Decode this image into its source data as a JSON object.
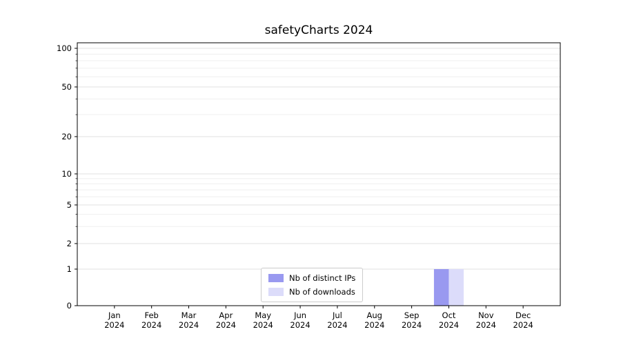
{
  "title": "safetyCharts 2024",
  "chart_data": {
    "type": "bar",
    "title": "safetyCharts 2024",
    "xlabel": "",
    "ylabel": "",
    "categories": [
      "Jan 2024",
      "Feb 2024",
      "Mar 2024",
      "Apr 2024",
      "May 2024",
      "Jun 2024",
      "Jul 2024",
      "Aug 2024",
      "Sep 2024",
      "Oct 2024",
      "Nov 2024",
      "Dec 2024"
    ],
    "series": [
      {
        "name": "Nb of distinct IPs",
        "color": "#9999f0",
        "values": [
          0,
          0,
          0,
          0,
          0,
          0,
          0,
          0,
          0,
          1,
          0,
          0
        ]
      },
      {
        "name": "Nb of downloads",
        "color": "#dcdcfa",
        "values": [
          0,
          0,
          0,
          0,
          0,
          0,
          0,
          0,
          0,
          1,
          0,
          0
        ]
      }
    ],
    "yscale": "symlog",
    "yticks": [
      0,
      1,
      2,
      5,
      10,
      20,
      50,
      100
    ],
    "y_minor_ticks": [
      3,
      4,
      6,
      7,
      8,
      9,
      30,
      40,
      60,
      70,
      80,
      90
    ],
    "ylim": [
      0,
      112
    ],
    "grid": true,
    "legend_position": "lower center",
    "colors": {
      "grid_major": "#e2e2e2",
      "grid_minor": "#efefef",
      "axis": "#000000"
    }
  }
}
